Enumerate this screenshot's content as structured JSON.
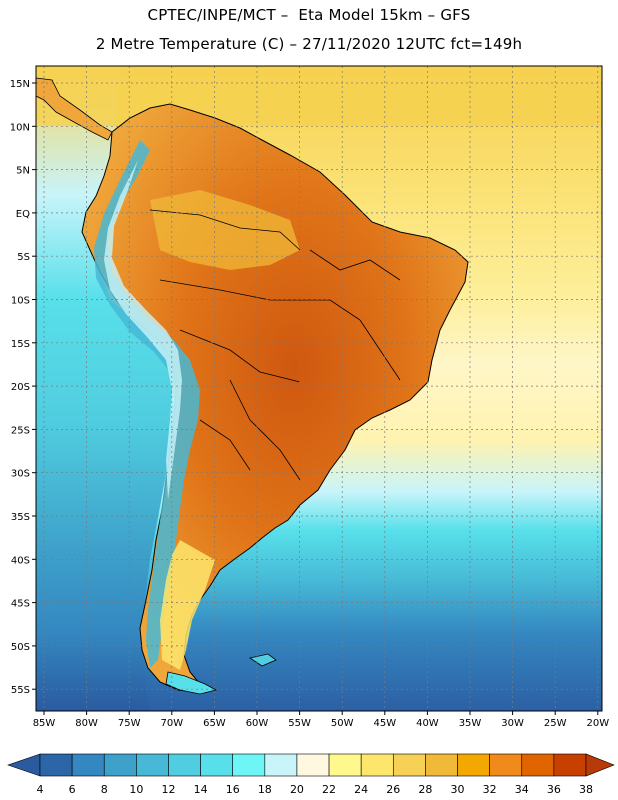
{
  "title": {
    "line1": "CPTEC/INPE/MCT –  Eta Model 15km – GFS",
    "line2": "2 Metre Temperature (C) – 27/11/2020 12UTC fct=149h"
  },
  "map": {
    "region": "South America",
    "lat_labels": [
      "15N",
      "10N",
      "5N",
      "EQ",
      "5S",
      "10S",
      "15S",
      "20S",
      "25S",
      "30S",
      "35S",
      "40S",
      "45S",
      "50S",
      "55S"
    ],
    "lon_labels": [
      "85W",
      "80W",
      "75W",
      "70W",
      "65W",
      "60W",
      "55W",
      "50W",
      "45W",
      "40W",
      "35W",
      "30W",
      "25W",
      "20W"
    ]
  },
  "colorbar": {
    "labels": [
      "4",
      "6",
      "8",
      "10",
      "12",
      "14",
      "16",
      "18",
      "20",
      "22",
      "24",
      "26",
      "28",
      "30",
      "32",
      "34",
      "36",
      "38"
    ],
    "colors": [
      "#2c66a8",
      "#3487c0",
      "#3ea1ca",
      "#47b8d6",
      "#50cde0",
      "#58e0ea",
      "#6ef6f6",
      "#c8f4fa",
      "#fff8e0",
      "#fff88c",
      "#fde66c",
      "#f7d156",
      "#f0ba38",
      "#f2a800",
      "#f08a1a",
      "#e06400",
      "#c84000"
    ],
    "low_color": "#2a5ba0",
    "high_color": "#b83a08"
  },
  "colors": {
    "ocean_deep": "#2e62a6",
    "ocean_mid": "#3ea1ca",
    "ocean_light": "#58e0ea",
    "warm_ocean": "#fbe07a",
    "land_hot": "#dc6a10",
    "land_warm": "#efa63a"
  }
}
